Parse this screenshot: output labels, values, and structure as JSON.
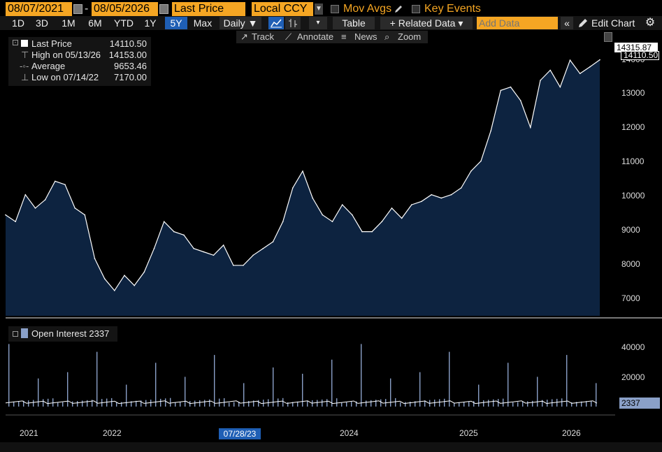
{
  "toolbar1": {
    "start_date": "08/07/2021",
    "date_separator": "-",
    "end_date": "08/05/2026",
    "field": "Last Price",
    "currency": "Local CCY",
    "mov_avgs": "Mov Avgs",
    "key_events": "Key Events"
  },
  "toolbar2": {
    "ranges": [
      "1D",
      "3D",
      "1M",
      "6M",
      "YTD",
      "1Y",
      "5Y",
      "Max"
    ],
    "selected_range": "5Y",
    "frequency": "Daily ▼",
    "table": "Table",
    "related_data": "+ Related Data ▾",
    "add_data_placeholder": "Add Data",
    "edit_chart": "Edit Chart"
  },
  "tools": {
    "track": "Track",
    "annotate": "Annotate",
    "news": "News",
    "zoom": "Zoom"
  },
  "legend": {
    "last_label": "Last Price",
    "last_value": "14110.50",
    "high_label": "High on 05/13/26",
    "high_value": "14153.00",
    "avg_label": "Average",
    "avg_value": "9653.46",
    "low_label": "Low on 07/14/22",
    "low_value": "7170.00"
  },
  "price_axis": {
    "ticks": [
      "14000",
      "13000",
      "12000",
      "11000",
      "10000",
      "9000",
      "8000",
      "7000"
    ],
    "badge_high": "14315.87",
    "badge_last": "14110.50"
  },
  "oi_legend": {
    "label": "Open Interest 2337"
  },
  "oi_axis": {
    "ticks": [
      "40000",
      "20000"
    ],
    "badge_last": "2337"
  },
  "x_axis": {
    "ticks": [
      "2021",
      "2022",
      "2024",
      "2025",
      "2026"
    ],
    "cursor_date": "07/28/23"
  },
  "colors": {
    "accent": "#f5a623",
    "area_fill": "#0d2340",
    "line": "#ffffff",
    "oi_bar": "#8aa0c8",
    "selected": "#1f5fb5"
  },
  "chart_data": [
    {
      "type": "area",
      "x": [
        "2021-08",
        "2021-09",
        "2021-10",
        "2021-11",
        "2021-12",
        "2022-01",
        "2022-02",
        "2022-03",
        "2022-04",
        "2022-05",
        "2022-06",
        "2022-07",
        "2022-08",
        "2022-09",
        "2022-10",
        "2022-11",
        "2022-12",
        "2023-01",
        "2023-02",
        "2023-03",
        "2023-04",
        "2023-05",
        "2023-06",
        "2023-07",
        "2023-08",
        "2023-09",
        "2023-10",
        "2023-11",
        "2023-12",
        "2024-01",
        "2024-02",
        "2024-03",
        "2024-04",
        "2024-05",
        "2024-06",
        "2024-07",
        "2024-08",
        "2024-09",
        "2024-10",
        "2024-11",
        "2024-12",
        "2025-01",
        "2025-02",
        "2025-03",
        "2025-04",
        "2025-05",
        "2025-06",
        "2025-07",
        "2025-08",
        "2025-09",
        "2025-10",
        "2025-11",
        "2025-12",
        "2026-01",
        "2026-02",
        "2026-03",
        "2026-04",
        "2026-05",
        "2026-06",
        "2026-07",
        "2026-08"
      ],
      "series": [
        {
          "name": "Last Price",
          "values": [
            9500,
            9300,
            10100,
            9700,
            9950,
            10500,
            10400,
            9700,
            9500,
            8200,
            7600,
            7250,
            7700,
            7400,
            7800,
            8500,
            9300,
            9000,
            8900,
            8500,
            8400,
            8300,
            8600,
            8000,
            8000,
            8300,
            8500,
            8700,
            9300,
            10300,
            10800,
            10000,
            9500,
            9300,
            9800,
            9500,
            9000,
            9000,
            9300,
            9700,
            9400,
            9800,
            9900,
            10100,
            10000,
            10100,
            10300,
            10800,
            11100,
            12000,
            13200,
            13300,
            12900,
            12100,
            13500,
            13800,
            13300,
            14100,
            13700,
            13900,
            14110.5
          ]
        }
      ],
      "ylim": [
        6500,
        14600
      ]
    },
    {
      "type": "bar",
      "series": [
        {
          "name": "Open Interest",
          "values": [
            2337
          ]
        }
      ],
      "ylim": [
        0,
        50000
      ]
    }
  ]
}
